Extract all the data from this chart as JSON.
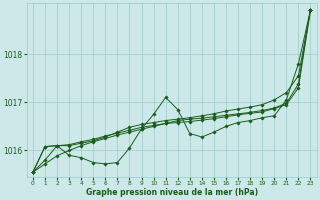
{
  "xlabel": "Graphe pression niveau de la mer (hPa)",
  "background_color": "#cce8e8",
  "line_color": "#1a5c1a",
  "grid_color": "#99cccc",
  "ylim": [
    1015.45,
    1019.05
  ],
  "yticks": [
    1016,
    1017,
    1018
  ],
  "xlim": [
    -0.5,
    23.5
  ],
  "xticks": [
    0,
    1,
    2,
    3,
    4,
    5,
    6,
    7,
    8,
    9,
    10,
    11,
    12,
    13,
    14,
    15,
    16,
    17,
    18,
    19,
    20,
    21,
    22,
    23
  ],
  "series": {
    "main": [
      1015.55,
      1015.8,
      1016.1,
      1015.9,
      1015.85,
      1015.75,
      1015.72,
      1015.75,
      1016.05,
      1016.45,
      1016.75,
      1017.1,
      1016.85,
      1016.35,
      1016.28,
      1016.38,
      1016.5,
      1016.58,
      1016.62,
      1016.68,
      1016.72,
      1017.05,
      1017.8,
      1018.92
    ],
    "smooth1": [
      1015.55,
      1016.08,
      1016.1,
      1016.1,
      1016.15,
      1016.2,
      1016.28,
      1016.38,
      1016.48,
      1016.54,
      1016.58,
      1016.62,
      1016.65,
      1016.68,
      1016.72,
      1016.76,
      1016.82,
      1016.86,
      1016.9,
      1016.95,
      1017.05,
      1017.2,
      1017.55,
      1018.92
    ],
    "smooth2": [
      1015.55,
      1016.08,
      1016.1,
      1016.12,
      1016.18,
      1016.23,
      1016.3,
      1016.36,
      1016.42,
      1016.48,
      1016.52,
      1016.56,
      1016.58,
      1016.6,
      1016.63,
      1016.66,
      1016.7,
      1016.74,
      1016.77,
      1016.8,
      1016.87,
      1016.95,
      1017.3,
      1018.92
    ],
    "linear": [
      1015.55,
      1015.72,
      1015.89,
      1016.0,
      1016.1,
      1016.18,
      1016.25,
      1016.32,
      1016.38,
      1016.44,
      1016.5,
      1016.56,
      1016.62,
      1016.65,
      1016.67,
      1016.7,
      1016.73,
      1016.76,
      1016.79,
      1016.83,
      1016.88,
      1016.98,
      1017.38,
      1018.92
    ]
  }
}
